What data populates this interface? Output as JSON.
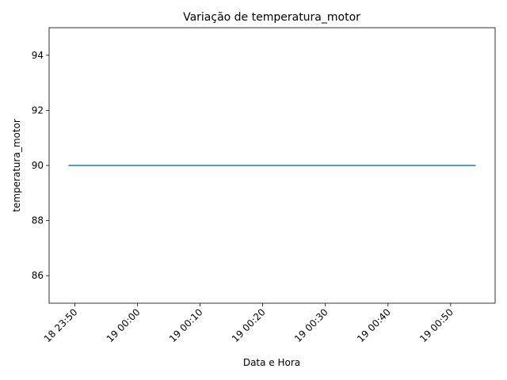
{
  "chart_data": {
    "type": "line",
    "title": "Variação de temperatura_motor",
    "xlabel": "Data e Hora",
    "ylabel": "temperatura_motor",
    "x_ticks": [
      "18 23:50",
      "19 00:00",
      "19 00:10",
      "19 00:20",
      "19 00:30",
      "19 00:40",
      "19 00:50"
    ],
    "y_ticks": [
      "86",
      "88",
      "90",
      "92",
      "94"
    ],
    "ylim": [
      85,
      95
    ],
    "xlim_minutes": [
      -14.1,
      57.1
    ],
    "series": [
      {
        "color": "#1f77b4",
        "x": [
          "18 23:49",
          "19 00:54"
        ],
        "x_minutes": [
          -11,
          54
        ],
        "y": [
          90,
          90
        ]
      }
    ],
    "grid": false,
    "legend": "none"
  }
}
